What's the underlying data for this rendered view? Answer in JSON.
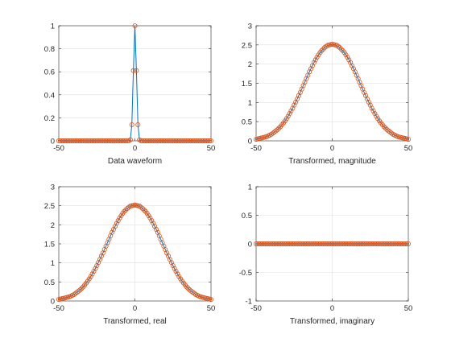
{
  "chart_data": [
    {
      "type": "line",
      "xlabel": "Data waveform",
      "ylabel": "",
      "xlim": [
        -50,
        50
      ],
      "ylim": [
        0,
        1
      ],
      "xticks": [
        -50,
        0,
        50
      ],
      "yticks": [
        0,
        0.2,
        0.4,
        0.6,
        0.8,
        1
      ],
      "grid": true,
      "line_color": "#0072bd",
      "marker_color": "#d95319",
      "series": [
        {
          "x": [
            -50,
            -49,
            -48,
            -47,
            -46,
            -45,
            -44,
            -43,
            -42,
            -41,
            -40,
            -39,
            -38,
            -37,
            -36,
            -35,
            -34,
            -33,
            -32,
            -31,
            -30,
            -29,
            -28,
            -27,
            -26,
            -25,
            -24,
            -23,
            -22,
            -21,
            -20,
            -19,
            -18,
            -17,
            -16,
            -15,
            -14,
            -13,
            -12,
            -11,
            -10,
            -9,
            -8,
            -7,
            -6,
            -5,
            -4,
            -3,
            -2,
            -1,
            0,
            1,
            2,
            3,
            4,
            5,
            6,
            7,
            8,
            9,
            10,
            11,
            12,
            13,
            14,
            15,
            16,
            17,
            18,
            19,
            20,
            21,
            22,
            23,
            24,
            25,
            26,
            27,
            28,
            29,
            30,
            31,
            32,
            33,
            34,
            35,
            36,
            37,
            38,
            39,
            40,
            41,
            42,
            43,
            44,
            45,
            46,
            47,
            48,
            49,
            50
          ],
          "y": [
            0,
            0,
            0,
            0,
            0,
            0,
            0,
            0,
            0,
            0,
            0,
            0,
            0,
            0,
            0,
            0,
            0,
            0,
            0,
            0,
            0,
            0,
            0,
            0,
            0,
            0,
            0,
            0,
            0,
            0,
            0,
            0,
            0,
            0,
            0,
            0,
            0,
            0,
            0,
            0,
            0,
            0,
            0,
            0,
            0,
            0,
            0,
            0.01,
            0.14,
            0.61,
            1,
            0.61,
            0.14,
            0.01,
            0,
            0,
            0,
            0,
            0,
            0,
            0,
            0,
            0,
            0,
            0,
            0,
            0,
            0,
            0,
            0,
            0,
            0,
            0,
            0,
            0,
            0,
            0,
            0,
            0,
            0,
            0,
            0,
            0,
            0,
            0,
            0,
            0,
            0,
            0,
            0,
            0,
            0,
            0,
            0,
            0,
            0,
            0,
            0,
            0,
            0,
            0
          ]
        }
      ]
    },
    {
      "type": "line",
      "xlabel": "Transformed, magnitude",
      "ylabel": "",
      "xlim": [
        -50,
        50
      ],
      "ylim": [
        0,
        3
      ],
      "xticks": [
        -50,
        0,
        50
      ],
      "yticks": [
        0,
        0.5,
        1,
        1.5,
        2,
        2.5,
        3
      ],
      "grid": true,
      "line_color": "#0072bd",
      "marker_color": "#d95319",
      "series": [
        {
          "x": [
            -50,
            -49,
            -48,
            -47,
            -46,
            -45,
            -44,
            -43,
            -42,
            -41,
            -40,
            -39,
            -38,
            -37,
            -36,
            -35,
            -34,
            -33,
            -32,
            -31,
            -30,
            -29,
            -28,
            -27,
            -26,
            -25,
            -24,
            -23,
            -22,
            -21,
            -20,
            -19,
            -18,
            -17,
            -16,
            -15,
            -14,
            -13,
            -12,
            -11,
            -10,
            -9,
            -8,
            -7,
            -6,
            -5,
            -4,
            -3,
            -2,
            -1,
            0,
            1,
            2,
            3,
            4,
            5,
            6,
            7,
            8,
            9,
            10,
            11,
            12,
            13,
            14,
            15,
            16,
            17,
            18,
            19,
            20,
            21,
            22,
            23,
            24,
            25,
            26,
            27,
            28,
            29,
            30,
            31,
            32,
            33,
            34,
            35,
            36,
            37,
            38,
            39,
            40,
            41,
            42,
            43,
            44,
            45,
            46,
            47,
            48,
            49,
            50
          ],
          "y": [
            0.04,
            0.05,
            0.06,
            0.07,
            0.08,
            0.09,
            0.1,
            0.11,
            0.13,
            0.15,
            0.17,
            0.2,
            0.23,
            0.26,
            0.29,
            0.33,
            0.37,
            0.42,
            0.47,
            0.52,
            0.58,
            0.64,
            0.71,
            0.78,
            0.85,
            0.93,
            1.01,
            1.09,
            1.18,
            1.26,
            1.35,
            1.44,
            1.53,
            1.62,
            1.71,
            1.8,
            1.88,
            1.96,
            2.04,
            2.11,
            2.18,
            2.24,
            2.3,
            2.35,
            2.39,
            2.43,
            2.46,
            2.49,
            2.5,
            2.51,
            2.52,
            2.51,
            2.5,
            2.49,
            2.46,
            2.43,
            2.39,
            2.35,
            2.3,
            2.24,
            2.18,
            2.11,
            2.04,
            1.96,
            1.88,
            1.8,
            1.71,
            1.62,
            1.53,
            1.44,
            1.35,
            1.26,
            1.18,
            1.09,
            1.01,
            0.93,
            0.85,
            0.78,
            0.71,
            0.64,
            0.58,
            0.52,
            0.47,
            0.42,
            0.37,
            0.33,
            0.29,
            0.26,
            0.23,
            0.2,
            0.17,
            0.15,
            0.13,
            0.11,
            0.1,
            0.09,
            0.08,
            0.07,
            0.06,
            0.05,
            0.04
          ]
        }
      ]
    },
    {
      "type": "line",
      "xlabel": "Transformed, real",
      "ylabel": "",
      "xlim": [
        -50,
        50
      ],
      "ylim": [
        0,
        3
      ],
      "xticks": [
        -50,
        0,
        50
      ],
      "yticks": [
        0,
        0.5,
        1,
        1.5,
        2,
        2.5,
        3
      ],
      "grid": true,
      "line_color": "#0072bd",
      "marker_color": "#d95319",
      "series": [
        {
          "x": [
            -50,
            -49,
            -48,
            -47,
            -46,
            -45,
            -44,
            -43,
            -42,
            -41,
            -40,
            -39,
            -38,
            -37,
            -36,
            -35,
            -34,
            -33,
            -32,
            -31,
            -30,
            -29,
            -28,
            -27,
            -26,
            -25,
            -24,
            -23,
            -22,
            -21,
            -20,
            -19,
            -18,
            -17,
            -16,
            -15,
            -14,
            -13,
            -12,
            -11,
            -10,
            -9,
            -8,
            -7,
            -6,
            -5,
            -4,
            -3,
            -2,
            -1,
            0,
            1,
            2,
            3,
            4,
            5,
            6,
            7,
            8,
            9,
            10,
            11,
            12,
            13,
            14,
            15,
            16,
            17,
            18,
            19,
            20,
            21,
            22,
            23,
            24,
            25,
            26,
            27,
            28,
            29,
            30,
            31,
            32,
            33,
            34,
            35,
            36,
            37,
            38,
            39,
            40,
            41,
            42,
            43,
            44,
            45,
            46,
            47,
            48,
            49,
            50
          ],
          "y": [
            0.04,
            0.05,
            0.06,
            0.07,
            0.08,
            0.09,
            0.1,
            0.11,
            0.13,
            0.15,
            0.17,
            0.2,
            0.23,
            0.26,
            0.29,
            0.33,
            0.37,
            0.42,
            0.47,
            0.52,
            0.58,
            0.64,
            0.71,
            0.78,
            0.85,
            0.93,
            1.01,
            1.09,
            1.18,
            1.26,
            1.35,
            1.44,
            1.53,
            1.62,
            1.71,
            1.8,
            1.88,
            1.96,
            2.04,
            2.11,
            2.18,
            2.24,
            2.3,
            2.35,
            2.39,
            2.43,
            2.46,
            2.49,
            2.5,
            2.51,
            2.52,
            2.51,
            2.5,
            2.49,
            2.46,
            2.43,
            2.39,
            2.35,
            2.3,
            2.24,
            2.18,
            2.11,
            2.04,
            1.96,
            1.88,
            1.8,
            1.71,
            1.62,
            1.53,
            1.44,
            1.35,
            1.26,
            1.18,
            1.09,
            1.01,
            0.93,
            0.85,
            0.78,
            0.71,
            0.64,
            0.58,
            0.52,
            0.47,
            0.42,
            0.37,
            0.33,
            0.29,
            0.26,
            0.23,
            0.2,
            0.17,
            0.15,
            0.13,
            0.11,
            0.1,
            0.09,
            0.08,
            0.07,
            0.06,
            0.05,
            0.04
          ]
        }
      ]
    },
    {
      "type": "line",
      "xlabel": "Transformed, imaginary",
      "ylabel": "",
      "xlim": [
        -50,
        50
      ],
      "ylim": [
        -1,
        1
      ],
      "xticks": [
        -50,
        0,
        50
      ],
      "yticks": [
        -1,
        -0.5,
        0,
        0.5,
        1
      ],
      "grid": true,
      "line_color": "#0072bd",
      "marker_color": "#d95319",
      "series": [
        {
          "x": [
            -50,
            -49,
            -48,
            -47,
            -46,
            -45,
            -44,
            -43,
            -42,
            -41,
            -40,
            -39,
            -38,
            -37,
            -36,
            -35,
            -34,
            -33,
            -32,
            -31,
            -30,
            -29,
            -28,
            -27,
            -26,
            -25,
            -24,
            -23,
            -22,
            -21,
            -20,
            -19,
            -18,
            -17,
            -16,
            -15,
            -14,
            -13,
            -12,
            -11,
            -10,
            -9,
            -8,
            -7,
            -6,
            -5,
            -4,
            -3,
            -2,
            -1,
            0,
            1,
            2,
            3,
            4,
            5,
            6,
            7,
            8,
            9,
            10,
            11,
            12,
            13,
            14,
            15,
            16,
            17,
            18,
            19,
            20,
            21,
            22,
            23,
            24,
            25,
            26,
            27,
            28,
            29,
            30,
            31,
            32,
            33,
            34,
            35,
            36,
            37,
            38,
            39,
            40,
            41,
            42,
            43,
            44,
            45,
            46,
            47,
            48,
            49,
            50
          ],
          "y": [
            0,
            0,
            0,
            0,
            0,
            0,
            0,
            0,
            0,
            0,
            0,
            0,
            0,
            0,
            0,
            0,
            0,
            0,
            0,
            0,
            0,
            0,
            0,
            0,
            0,
            0,
            0,
            0,
            0,
            0,
            0,
            0,
            0,
            0,
            0,
            0,
            0,
            0,
            0,
            0,
            0,
            0,
            0,
            0,
            0,
            0,
            0,
            0,
            0,
            0,
            0,
            0,
            0,
            0,
            0,
            0,
            0,
            0,
            0,
            0,
            0,
            0,
            0,
            0,
            0,
            0,
            0,
            0,
            0,
            0,
            0,
            0,
            0,
            0,
            0,
            0,
            0,
            0,
            0,
            0,
            0,
            0,
            0,
            0,
            0,
            0,
            0,
            0,
            0,
            0,
            0,
            0,
            0,
            0,
            0,
            0,
            0,
            0,
            0,
            0,
            0
          ]
        }
      ]
    }
  ]
}
